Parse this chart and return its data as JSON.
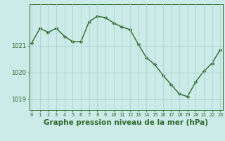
{
  "x": [
    0,
    1,
    2,
    3,
    4,
    5,
    6,
    7,
    8,
    9,
    10,
    11,
    12,
    13,
    14,
    15,
    16,
    17,
    18,
    19,
    20,
    21,
    22,
    23
  ],
  "y": [
    1021.1,
    1021.65,
    1021.5,
    1021.65,
    1021.35,
    1021.15,
    1021.15,
    1021.9,
    1022.1,
    1022.05,
    1021.85,
    1021.7,
    1021.6,
    1021.05,
    1020.55,
    1020.3,
    1019.9,
    1019.55,
    1019.2,
    1019.1,
    1019.65,
    1020.05,
    1020.35,
    1020.85
  ],
  "line_color": "#2d6a2d",
  "marker_color": "#2d6a2d",
  "bg_color": "#cceae7",
  "grid_color": "#aad4d0",
  "title": "Graphe pression niveau de la mer (hPa)",
  "yticks": [
    1019,
    1020,
    1021
  ],
  "ylim": [
    1018.6,
    1022.55
  ],
  "xlim": [
    -0.3,
    23.3
  ],
  "title_fontsize": 7.5
}
